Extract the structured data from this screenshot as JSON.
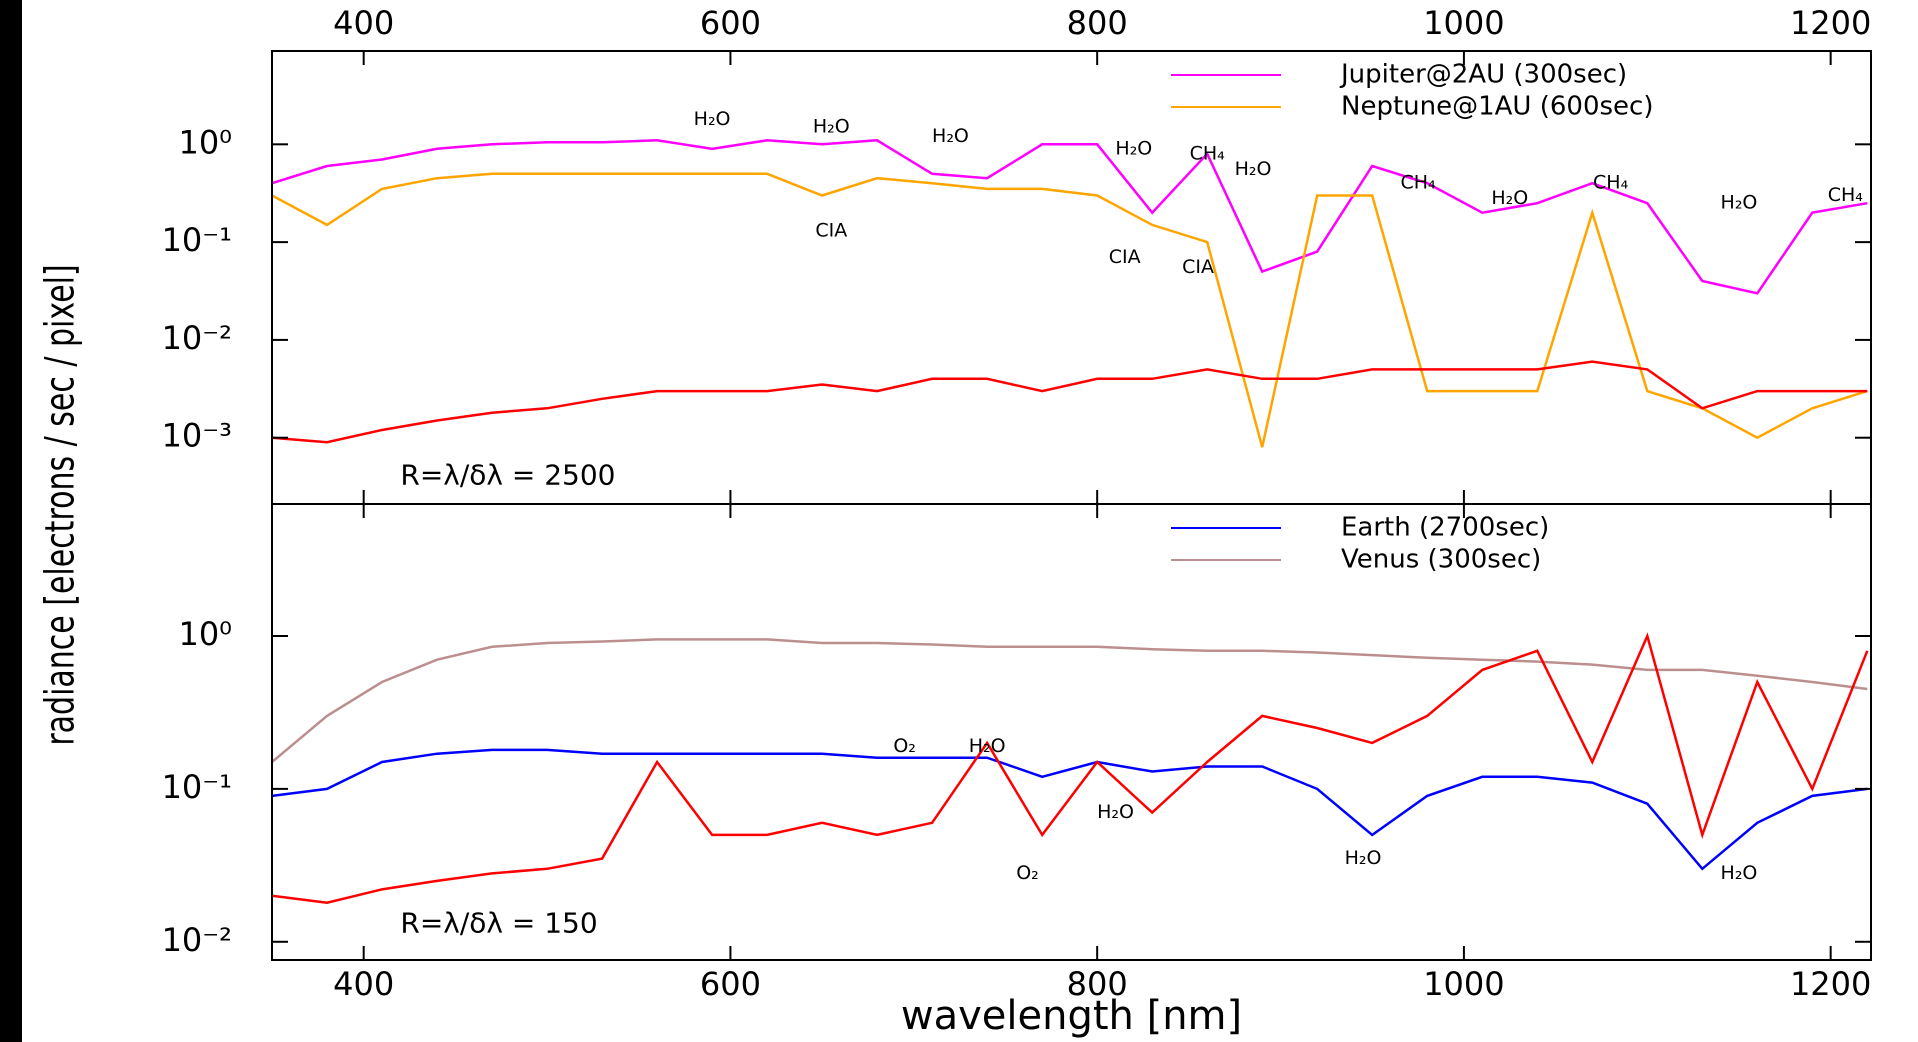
{
  "chart_data": [
    {
      "type": "line",
      "log_y": true,
      "xaxis_position": "top",
      "legend": "upper right",
      "ylabel": "radiance [electrons / sec / pixel]",
      "xlim": [
        350,
        1222
      ],
      "xticks": [
        400,
        600,
        800,
        1000,
        1200
      ],
      "ylim": [
        0.00021,
        9
      ],
      "yticks": [
        {
          "value": 0.001,
          "label": "10⁻³"
        },
        {
          "value": 0.01,
          "label": "10⁻²"
        },
        {
          "value": 0.1,
          "label": "10⁻¹"
        },
        {
          "value": 1,
          "label": "10⁰"
        }
      ],
      "x": [
        350,
        380,
        410,
        440,
        470,
        500,
        530,
        560,
        590,
        620,
        650,
        680,
        710,
        740,
        770,
        800,
        830,
        860,
        890,
        920,
        950,
        980,
        1010,
        1040,
        1070,
        1100,
        1130,
        1160,
        1190,
        1220
      ],
      "series": [
        {
          "name": "Jupiter@2AU (300sec)",
          "color": "#ff00ff",
          "values": [
            0.4,
            0.6,
            0.7,
            0.9,
            1.0,
            1.05,
            1.05,
            1.1,
            0.9,
            1.1,
            1.0,
            1.1,
            0.5,
            0.45,
            1.0,
            1.0,
            0.2,
            0.8,
            0.05,
            0.08,
            0.6,
            0.4,
            0.2,
            0.25,
            0.4,
            0.25,
            0.04,
            0.03,
            0.2,
            0.25
          ]
        },
        {
          "name": "Neptune@1AU (600sec)",
          "color": "#ffa500",
          "values": [
            0.3,
            0.15,
            0.35,
            0.45,
            0.5,
            0.5,
            0.5,
            0.5,
            0.5,
            0.5,
            0.3,
            0.45,
            0.4,
            0.35,
            0.35,
            0.3,
            0.15,
            0.1,
            0.0008,
            0.3,
            0.3,
            0.003,
            0.003,
            0.003,
            0.2,
            0.003,
            0.002,
            0.001,
            0.002,
            0.003
          ]
        },
        {
          "color": "#ff0000",
          "values": [
            0.001,
            0.0009,
            0.0012,
            0.0015,
            0.0018,
            0.002,
            0.0025,
            0.003,
            0.003,
            0.003,
            0.0035,
            0.003,
            0.004,
            0.004,
            0.003,
            0.004,
            0.004,
            0.005,
            0.004,
            0.004,
            0.005,
            0.005,
            0.005,
            0.005,
            0.006,
            0.005,
            0.002,
            0.003,
            0.003,
            0.003
          ]
        }
      ],
      "annotations": [
        {
          "text": "H₂O",
          "x": 590,
          "y": 1.8
        },
        {
          "text": "H₂O",
          "x": 655,
          "y": 1.5
        },
        {
          "text": "H₂O",
          "x": 720,
          "y": 1.2
        },
        {
          "text": "H₂O",
          "x": 820,
          "y": 0.9
        },
        {
          "text": "CH₄",
          "x": 860,
          "y": 0.8
        },
        {
          "text": "H₂O",
          "x": 885,
          "y": 0.55
        },
        {
          "text": "CH₄",
          "x": 975,
          "y": 0.4
        },
        {
          "text": "H₂O",
          "x": 1025,
          "y": 0.28
        },
        {
          "text": "CH₄",
          "x": 1080,
          "y": 0.4
        },
        {
          "text": "H₂O",
          "x": 1150,
          "y": 0.25
        },
        {
          "text": "CH₄",
          "x": 1208,
          "y": 0.3
        },
        {
          "text": "CIA",
          "x": 655,
          "y": 0.13
        },
        {
          "text": "CIA",
          "x": 815,
          "y": 0.07
        },
        {
          "text": "CIA",
          "x": 855,
          "y": 0.055
        },
        {
          "text": "R=λ/δλ = 2500",
          "x": 420,
          "y": 0.0004
        }
      ]
    },
    {
      "type": "line",
      "log_y": true,
      "xaxis_position": "bottom",
      "legend": "upper right",
      "xlabel": "wavelength [nm]",
      "xlim": [
        350,
        1222
      ],
      "xticks": [
        400,
        600,
        800,
        1000,
        1200
      ],
      "ylim": [
        0.0076,
        7.3
      ],
      "yticks": [
        {
          "value": 0.01,
          "label": "10⁻²"
        },
        {
          "value": 0.1,
          "label": "10⁻¹"
        },
        {
          "value": 1,
          "label": "10⁰"
        }
      ],
      "x": [
        350,
        380,
        410,
        440,
        470,
        500,
        530,
        560,
        590,
        620,
        650,
        680,
        710,
        740,
        770,
        800,
        830,
        860,
        890,
        920,
        950,
        980,
        1010,
        1040,
        1070,
        1100,
        1130,
        1160,
        1190,
        1220
      ],
      "series": [
        {
          "name": "Earth (2700sec)",
          "color": "#0000ff",
          "values": [
            0.09,
            0.1,
            0.15,
            0.17,
            0.18,
            0.18,
            0.17,
            0.17,
            0.17,
            0.17,
            0.17,
            0.16,
            0.16,
            0.16,
            0.12,
            0.15,
            0.13,
            0.14,
            0.14,
            0.1,
            0.05,
            0.09,
            0.12,
            0.12,
            0.11,
            0.08,
            0.03,
            0.06,
            0.09,
            0.1
          ]
        },
        {
          "name": "Venus (300sec)",
          "color": "#bc8f8f",
          "values": [
            0.15,
            0.3,
            0.5,
            0.7,
            0.85,
            0.9,
            0.92,
            0.95,
            0.95,
            0.95,
            0.9,
            0.9,
            0.88,
            0.85,
            0.85,
            0.85,
            0.82,
            0.8,
            0.8,
            0.78,
            0.75,
            0.72,
            0.7,
            0.68,
            0.65,
            0.6,
            0.6,
            0.55,
            0.5,
            0.45
          ]
        },
        {
          "color": "#ff0000",
          "values": [
            0.02,
            0.018,
            0.022,
            0.025,
            0.028,
            0.03,
            0.035,
            0.15,
            0.05,
            0.05,
            0.06,
            0.05,
            0.06,
            0.2,
            0.05,
            0.15,
            0.07,
            0.15,
            0.3,
            0.25,
            0.2,
            0.3,
            0.6,
            0.8,
            0.15,
            1.0,
            0.05,
            0.5,
            0.1,
            0.8
          ]
        }
      ],
      "annotations": [
        {
          "text": "O₂",
          "x": 695,
          "y": 0.19
        },
        {
          "text": "H₂O",
          "x": 740,
          "y": 0.19
        },
        {
          "text": "H₂O",
          "x": 810,
          "y": 0.07
        },
        {
          "text": "O₂",
          "x": 762,
          "y": 0.028
        },
        {
          "text": "H₂O",
          "x": 945,
          "y": 0.035
        },
        {
          "text": "H₂O",
          "x": 1150,
          "y": 0.028
        },
        {
          "text": "R=λ/δλ = 150",
          "x": 420,
          "y": 0.013
        }
      ]
    }
  ]
}
